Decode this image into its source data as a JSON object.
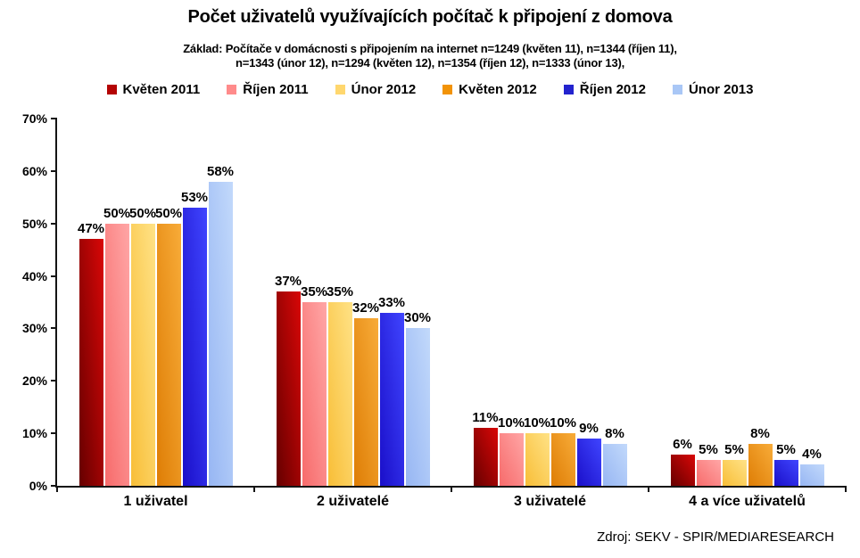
{
  "chart_data": {
    "type": "bar",
    "title": "Počet uživatelů využívajících počítač k připojení z domova",
    "subtitle_lines": [
      "Základ: Počítače v domácnosti s připojením na internet n=1249 (květen 11), n=1344 (říjen 11),",
      "n=1343 (únor 12), n=1294 (květen 12), n=1354 (říjen 12), n=1333 (únor 13),"
    ],
    "categories": [
      "1 uživatel",
      "2 uživatelé",
      "3 uživatelé",
      "4 a více uživatelů"
    ],
    "series": [
      {
        "name": "Květen 2011",
        "values": [
          47,
          37,
          11,
          6
        ],
        "legend_color": "#b40404",
        "color_dark": "#650000",
        "color_light": "#d90707"
      },
      {
        "name": "Říjen 2011",
        "values": [
          50,
          35,
          10,
          5
        ],
        "legend_color": "#ff8b8b",
        "color_dark": "#f76b6b",
        "color_light": "#ffa6a6"
      },
      {
        "name": "Únor 2012",
        "values": [
          50,
          35,
          10,
          5
        ],
        "legend_color": "#ffd76e",
        "color_dark": "#f8be37",
        "color_light": "#ffe286"
      },
      {
        "name": "Květen 2012",
        "values": [
          50,
          32,
          10,
          8
        ],
        "legend_color": "#f29307",
        "color_dark": "#de7d05",
        "color_light": "#f8ac39"
      },
      {
        "name": "Říjen 2012",
        "values": [
          53,
          33,
          9,
          5
        ],
        "legend_color": "#2323ce",
        "color_dark": "#1a0fc9",
        "color_light": "#4045ff"
      },
      {
        "name": "Únor 2013",
        "values": [
          58,
          30,
          8,
          4
        ],
        "legend_color": "#a9c7f6",
        "color_dark": "#97b6f3",
        "color_light": "#c2d9fb"
      }
    ],
    "value_suffix": "%",
    "ylim": [
      0,
      70
    ],
    "yticks": [
      "0%",
      "10%",
      "20%",
      "30%",
      "40%",
      "50%",
      "60%",
      "70%"
    ],
    "grid": "off",
    "legend_position": "top",
    "source": "Zdroj: SEKV - SPIR/MEDIARESEARCH",
    "axis_color": "#141414"
  }
}
